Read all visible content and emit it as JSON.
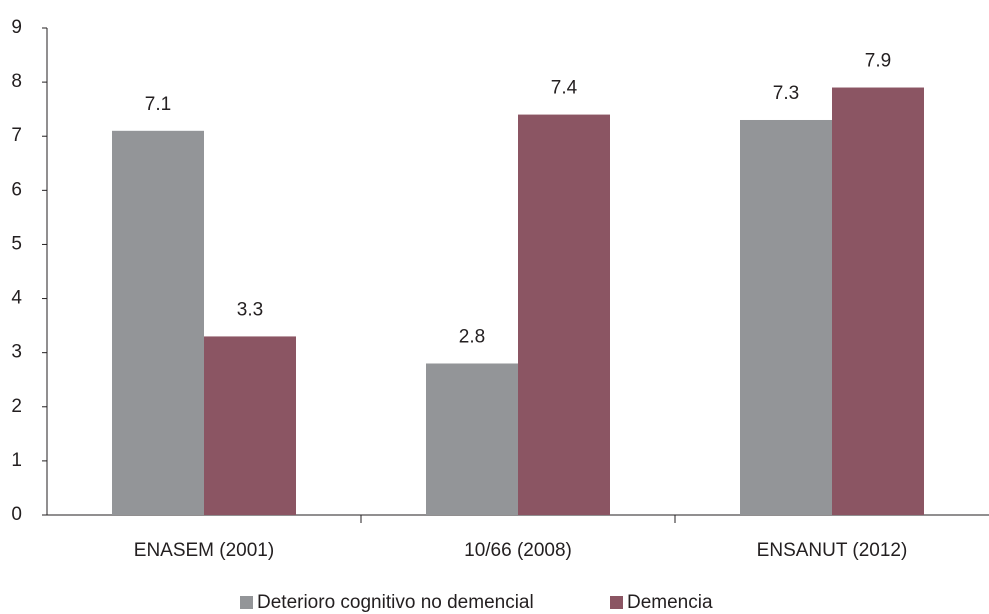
{
  "chart_data": {
    "type": "bar",
    "categories": [
      "ENASEM (2001)",
      "10/66 (2008)",
      "ENSANUT (2012)"
    ],
    "series": [
      {
        "name": "Deterioro cognitivo no demencial",
        "color": "#939598",
        "values": [
          7.1,
          2.8,
          7.3
        ]
      },
      {
        "name": "Demencia",
        "color": "#8b5563",
        "values": [
          3.3,
          7.4,
          7.9
        ]
      }
    ],
    "ylim": [
      0,
      9
    ],
    "yticks": [
      0,
      1,
      2,
      3,
      4,
      5,
      6,
      7,
      8,
      9
    ],
    "grid": false,
    "legend": "bottom"
  }
}
